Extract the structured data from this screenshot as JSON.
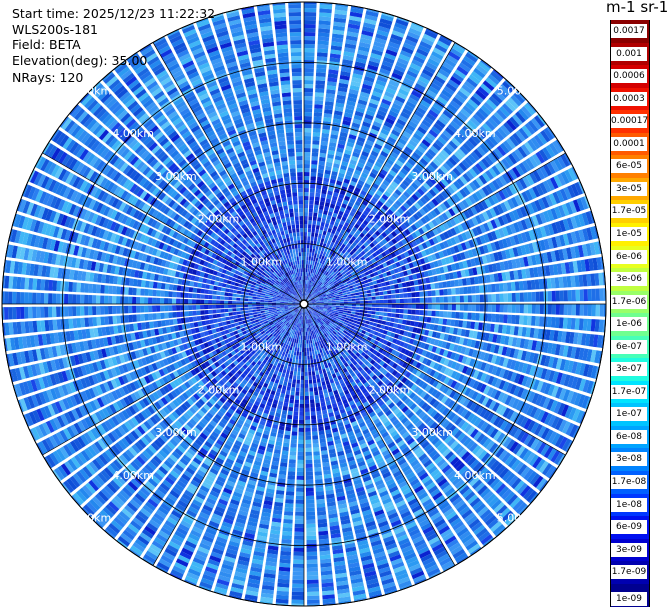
{
  "info": {
    "start_time": "Start time: 2025/12/23 11:22:32",
    "device": "WLS200s-181",
    "field": "Field: BETA",
    "elevation": "Elevation(deg): 35.00",
    "nrays": "NRays: 120"
  },
  "colorbar": {
    "unit_title": "m-1 sr-1",
    "labels": [
      "0.0017",
      "0.001",
      "0.0006",
      "0.0003",
      "0.00017",
      "0.0001",
      "6e-05",
      "3e-05",
      "1.7e-05",
      "1e-05",
      "6e-06",
      "3e-06",
      "1.7e-06",
      "1e-06",
      "6e-07",
      "3e-07",
      "1.7e-07",
      "1e-07",
      "6e-08",
      "3e-08",
      "1.7e-08",
      "1e-08",
      "6e-09",
      "3e-09",
      "1.7e-09",
      "1e-09"
    ],
    "colors": [
      "#8b0000",
      "#b00000",
      "#d40000",
      "#f01000",
      "#ff3000",
      "#ff5a00",
      "#ff8000",
      "#ffa800",
      "#ffcf00",
      "#fff000",
      "#e8ff20",
      "#c0ff40",
      "#98ff68",
      "#70ff90",
      "#48ffb8",
      "#20fce0",
      "#00e4ff",
      "#00c4ff",
      "#00a4ff",
      "#0084ff",
      "#0060ff",
      "#0038ff",
      "#0010f0",
      "#0000d0",
      "#0000b0",
      "#000090"
    ]
  },
  "rings": [
    {
      "label": "1.00km"
    },
    {
      "label": "2.00km"
    },
    {
      "label": "3.00km"
    },
    {
      "label": "4.00km"
    },
    {
      "label": "5.00km"
    }
  ],
  "chart_data": {
    "type": "heatmap",
    "projection": "polar PPI",
    "field": "BETA",
    "elevation_deg": 35.0,
    "nrays": 120,
    "ring_labels_km": [
      1,
      2,
      3,
      4,
      5
    ],
    "colorbar_scale": "log",
    "colorbar_range": [
      1e-09,
      0.0017
    ]
  }
}
